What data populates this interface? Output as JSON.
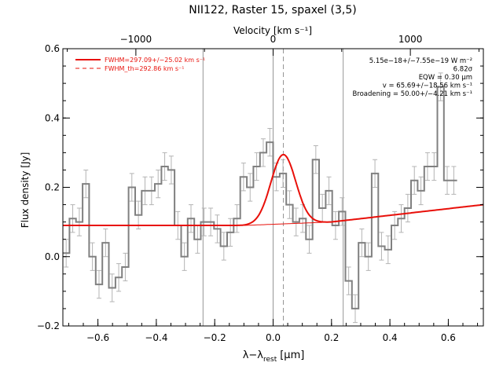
{
  "chart_data": {
    "type": "line",
    "title": "NII122, Raster 15, spaxel (3,5)",
    "xlabel": "λ−λ_rest [μm]",
    "xlabel_main": "λ−λ",
    "xlabel_sub": "rest",
    "xlabel_unit": "[μm]",
    "ylabel": "Flux density [Jy]",
    "top_axis_label": "Velocity [km s⁻¹]",
    "xlim": [
      -0.72,
      0.72
    ],
    "ylim": [
      -0.2,
      0.6
    ],
    "x_ticks": [
      {
        "value": -0.6,
        "label": "−0.6"
      },
      {
        "value": -0.4,
        "label": "−0.4"
      },
      {
        "value": -0.2,
        "label": "−0.2"
      },
      {
        "value": 0.0,
        "label": "0.0"
      },
      {
        "value": 0.2,
        "label": "0.2"
      },
      {
        "value": 0.4,
        "label": "0.4"
      },
      {
        "value": 0.6,
        "label": "0.6"
      }
    ],
    "y_ticks": [
      {
        "value": -0.2,
        "label": "−0.2"
      },
      {
        "value": 0.0,
        "label": "0.0"
      },
      {
        "value": 0.2,
        "label": "0.2"
      },
      {
        "value": 0.4,
        "label": "0.4"
      },
      {
        "value": 0.6,
        "label": "0.6"
      }
    ],
    "top_ticks": [
      {
        "value": -0.47,
        "label": "−1000"
      },
      {
        "value": 0.0,
        "label": "0"
      },
      {
        "value": 0.47,
        "label": "1000"
      }
    ],
    "vertical_lines": {
      "solid": [
        -0.24,
        0.0,
        0.24
      ],
      "dashed": [
        0.035
      ]
    },
    "legend": [
      {
        "label": "FWHM=297.09+/−25.02 km s⁻¹",
        "style": "solid"
      },
      {
        "label": "FWHM_th=292.86 km s⁻¹",
        "style": "dashed"
      }
    ],
    "annotations": [
      "5.15e−18+/−7.55e−19 W m⁻²",
      "6.82σ",
      "EQW = 0.30 μm",
      "v = 65.69+/−18.56 km s⁻¹",
      "Broadening = 50.00+/−4.21 km s⁻¹"
    ],
    "spectrum": {
      "name": "data",
      "x_start": -0.72,
      "bin_width": 0.0225,
      "values": [
        0.01,
        0.11,
        0.1,
        0.21,
        0.0,
        -0.08,
        0.04,
        -0.09,
        -0.06,
        -0.03,
        0.2,
        0.12,
        0.19,
        0.19,
        0.21,
        0.26,
        0.25,
        0.09,
        0.0,
        0.11,
        0.05,
        0.1,
        0.1,
        0.08,
        0.03,
        0.07,
        0.11,
        0.23,
        0.2,
        0.26,
        0.3,
        0.33,
        0.23,
        0.24,
        0.15,
        0.1,
        0.11,
        0.05,
        0.28,
        0.14,
        0.19,
        0.09,
        0.13,
        -0.07,
        -0.15,
        0.04,
        0.0,
        0.24,
        0.03,
        0.02,
        0.09,
        0.11,
        0.14,
        0.22,
        0.19,
        0.26,
        0.26,
        0.49,
        0.22,
        0.22
      ],
      "error": 0.04
    },
    "fit": {
      "name": "fit",
      "continuum": {
        "anchor_x": [
          -0.72,
          -0.1,
          0.2,
          0.72
        ],
        "anchor_y": [
          0.09,
          0.09,
          0.1,
          0.15
        ]
      },
      "gaussian": {
        "center": 0.035,
        "amplitude": 0.2,
        "sigma": 0.0425
      }
    },
    "colors": {
      "data": "#808080",
      "error": "#b4b4b4",
      "fit": "#e8100a",
      "axes": "#000000",
      "vline": "#969696"
    }
  }
}
